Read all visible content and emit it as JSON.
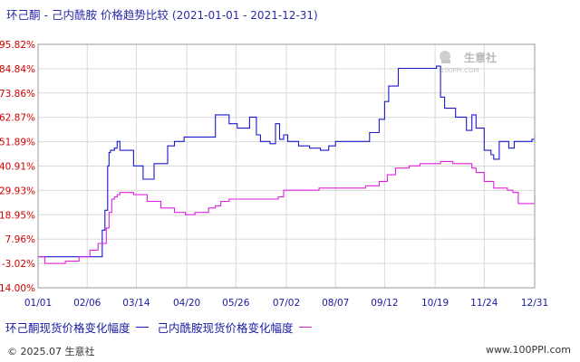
{
  "title": {
    "main": "环己酮 - 己内酰胺 价格趋势比较",
    "range": "(2021-01-01 - 2021-12-31)"
  },
  "watermark": {
    "name": "生意社",
    "url": "100PPI.COM"
  },
  "legend": {
    "series1_label": "环己酮现货价格变化幅度",
    "series2_label": "己内酰胺现货价格变化幅度"
  },
  "footer": {
    "copyright": "© 2025.07 生意社",
    "url": "www.100PPI.com"
  },
  "colors": {
    "series1": "#1a1acc",
    "series2": "#dd22dd",
    "grid": "#d9d9d9",
    "ytick": "#cc0000",
    "xtick": "#1a1aa0"
  },
  "chart_data": {
    "type": "line",
    "ylim": [
      -14.0,
      95.82
    ],
    "y_ticks": [
      "95.82%",
      "84.84%",
      "73.86%",
      "62.87%",
      "51.89%",
      "40.91%",
      "29.93%",
      "18.95%",
      "7.96%",
      "-3.02%",
      "-14.00%"
    ],
    "y_tick_values": [
      95.82,
      84.84,
      73.86,
      62.87,
      51.89,
      40.91,
      29.93,
      18.95,
      7.96,
      -3.02,
      -14.0
    ],
    "x_ticks": [
      "01/01",
      "02/06",
      "03/14",
      "04/20",
      "05/26",
      "07/02",
      "08/07",
      "09/12",
      "10/19",
      "11/24",
      "12/31"
    ],
    "x_tick_days": [
      0,
      36,
      72,
      109,
      145,
      182,
      218,
      254,
      291,
      327,
      364
    ],
    "grid": true,
    "series": [
      {
        "name": "环己酮现货价格变化幅度",
        "x_day": [
          0,
          10,
          40,
          47,
          49,
          51,
          52,
          53,
          56,
          58,
          60,
          66,
          70,
          77,
          80,
          85,
          90,
          95,
          100,
          107,
          112,
          119,
          124,
          130,
          133,
          140,
          146,
          155,
          160,
          163,
          170,
          174,
          177,
          180,
          183,
          191,
          199,
          207,
          213,
          218,
          227,
          235,
          243,
          250,
          254,
          257,
          264,
          270,
          278,
          284,
          289,
          292,
          295,
          298,
          306,
          314,
          318,
          321,
          327,
          332,
          334,
          338,
          345,
          349,
          356,
          362,
          364
        ],
        "values": [
          0,
          0,
          0,
          12,
          21,
          41,
          47,
          48,
          49,
          52,
          48,
          48,
          41,
          35,
          35,
          42,
          42,
          50,
          52,
          54,
          54,
          54,
          54,
          64,
          64,
          60,
          58,
          63,
          55,
          52,
          51,
          60,
          53,
          55,
          52,
          50,
          49,
          48,
          50,
          52,
          52,
          52,
          56,
          62,
          70,
          77,
          85,
          85,
          85,
          85,
          85,
          86,
          72,
          67,
          63,
          57,
          64,
          58,
          48,
          46,
          44,
          52,
          49,
          52,
          52,
          53,
          55
        ]
      },
      {
        "name": "己内酰胺现货价格变化幅度",
        "x_day": [
          0,
          5,
          10,
          20,
          30,
          38,
          44,
          47,
          50,
          52,
          54,
          56,
          58,
          60,
          64,
          70,
          80,
          90,
          100,
          108,
          115,
          120,
          125,
          130,
          134,
          140,
          150,
          160,
          170,
          176,
          180,
          185,
          190,
          198,
          206,
          213,
          222,
          230,
          240,
          250,
          256,
          262,
          272,
          280,
          289,
          295,
          304,
          312,
          318,
          321,
          327,
          334,
          344,
          348,
          352,
          358,
          362,
          364
        ],
        "values": [
          0,
          -3,
          -3,
          -2,
          0,
          3,
          6,
          6,
          13,
          20,
          26,
          27,
          28,
          29,
          29,
          28,
          25,
          22,
          20,
          19,
          20,
          20,
          22,
          23,
          25,
          26,
          26,
          26,
          26,
          27,
          30,
          30,
          30,
          30,
          31,
          31,
          31,
          31,
          32,
          34,
          37,
          40,
          41,
          42,
          42,
          43,
          42,
          42,
          40,
          38,
          34,
          31,
          30,
          29,
          24,
          24,
          24,
          28
        ]
      }
    ]
  }
}
